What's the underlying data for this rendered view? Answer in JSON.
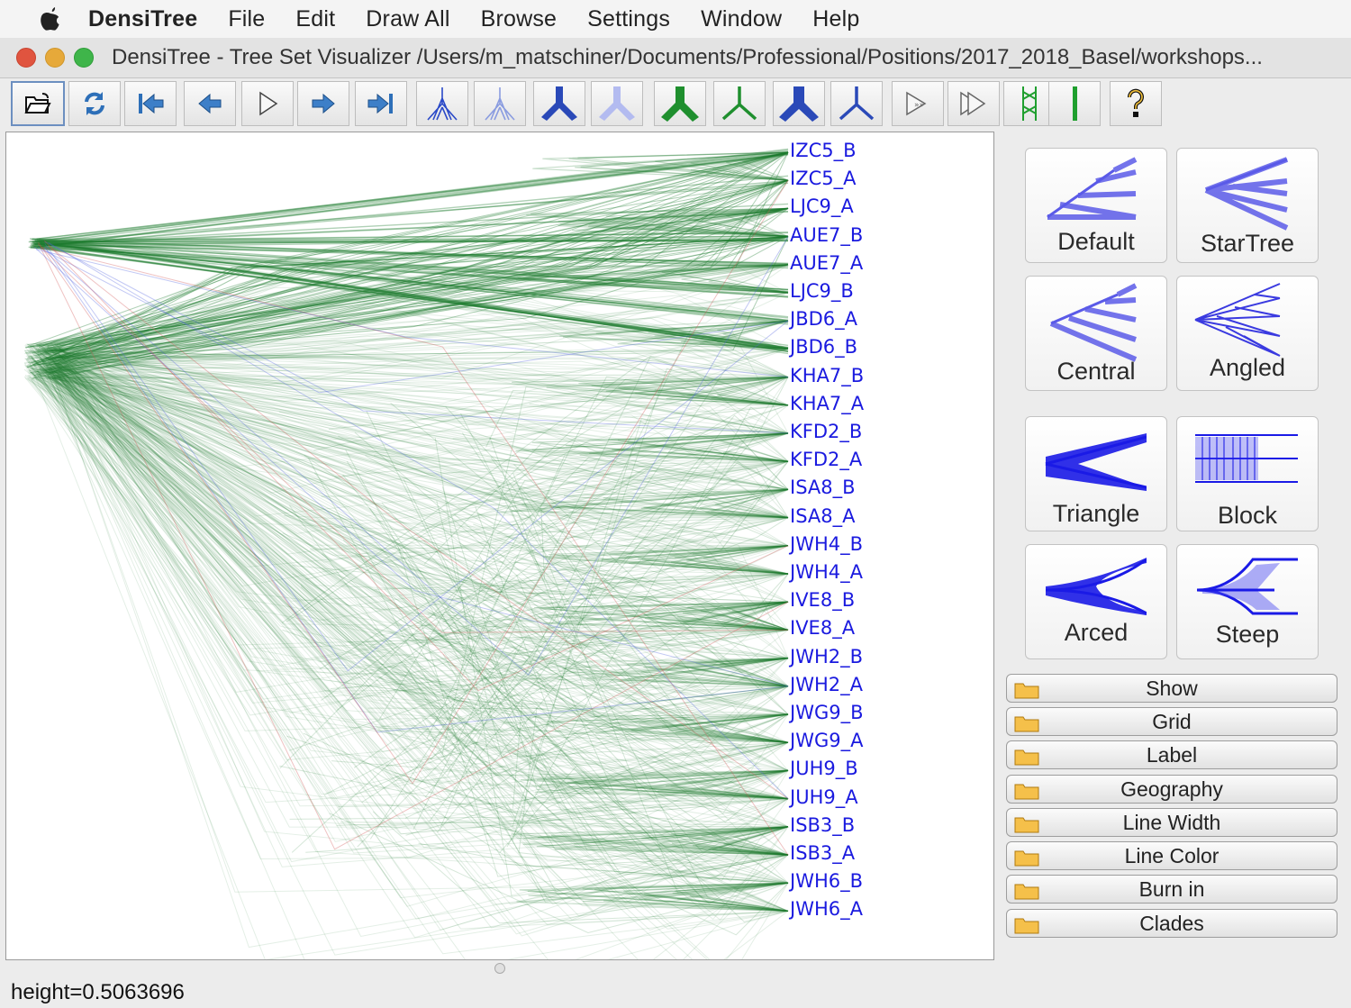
{
  "menubar": {
    "app_name": "DensiTree",
    "items": [
      "File",
      "Edit",
      "Draw All",
      "Browse",
      "Settings",
      "Window",
      "Help"
    ]
  },
  "window": {
    "title": "DensiTree - Tree Set Visualizer /Users/m_matschiner/Documents/Professional/Positions/2017_2018_Basel/workshops...",
    "traffic_lights": [
      "#e0543f",
      "#e6a93a",
      "#3fb54a"
    ]
  },
  "toolbar": {
    "buttons": [
      {
        "icon": "open-folder-icon"
      },
      {
        "icon": "reload-icon"
      },
      {
        "icon": "first-icon"
      },
      {
        "icon": "previous-icon"
      },
      {
        "icon": "play-icon"
      },
      {
        "icon": "next-icon"
      },
      {
        "icon": "last-icon"
      },
      {
        "icon": "tree-density-dark-icon"
      },
      {
        "icon": "tree-density-light-icon"
      },
      {
        "icon": "consensus-dark-icon"
      },
      {
        "icon": "consensus-light-icon"
      },
      {
        "icon": "green-tree-filled-icon"
      },
      {
        "icon": "green-tree-outline-icon"
      },
      {
        "icon": "blue-tree-filled-icon"
      },
      {
        "icon": "blue-tree-outline-icon"
      },
      {
        "icon": "animate-step-icon"
      },
      {
        "icon": "animate-fast-icon"
      },
      {
        "icon": "green-density-icon"
      },
      {
        "icon": "green-bar-icon"
      },
      {
        "icon": "help-icon"
      }
    ]
  },
  "taxa": [
    "IZC5_B",
    "IZC5_A",
    "LJC9_A",
    "AUE7_B",
    "AUE7_A",
    "LJC9_B",
    "JBD6_A",
    "JBD6_B",
    "KHA7_B",
    "KHA7_A",
    "KFD2_B",
    "KFD2_A",
    "ISA8_B",
    "ISA8_A",
    "JWH4_B",
    "JWH4_A",
    "IVE8_B",
    "IVE8_A",
    "JWH2_B",
    "JWH2_A",
    "JWG9_B",
    "JWG9_A",
    "JUH9_B",
    "JUH9_A",
    "ISB3_B",
    "ISB3_A",
    "JWH6_B",
    "JWH6_A"
  ],
  "colors": {
    "tree_lines": "#1e7a2e",
    "taxon_label": "#1a1adf",
    "mode_icon": "#5a5ae8"
  },
  "modes": [
    "Default",
    "StarTree",
    "Central",
    "Angled",
    "Triangle",
    "Block",
    "Arced",
    "Steep"
  ],
  "sections": [
    "Show",
    "Grid",
    "Label",
    "Geography",
    "Line Width",
    "Line Color",
    "Burn in",
    "Clades"
  ],
  "status": "height=0.5063696"
}
